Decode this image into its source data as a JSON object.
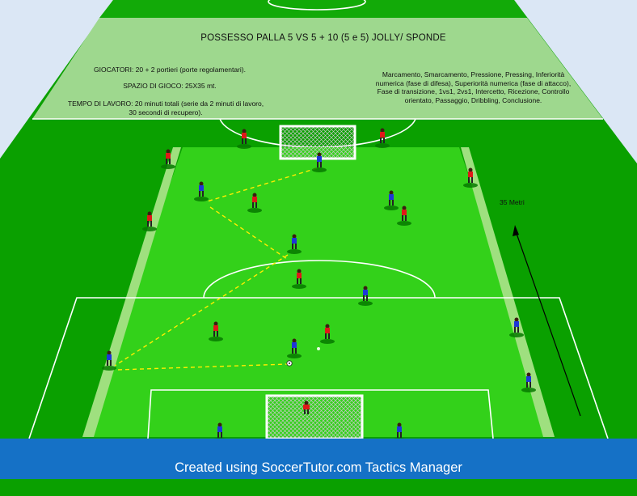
{
  "title": "POSSESSO  PALLA  5 VS 5  + 10  (5 e 5)  JOLLY/ SPONDE",
  "info": {
    "players": "GIOCATORI: 20 + 2 portieri (porte regolamentari).",
    "space": "SPAZIO DI GIOCO: 25X35 mt.",
    "time": "TEMPO DI LAVORO: 20 minuti totali (serie da 2 minuti di lavoro, 30 secondi di recupero).",
    "themes": "Marcamento, Smarcamento, Pressione, Pressing, Inferiorità numerica (fase di difesa), Superiorità numerica (fase di attacco), Fase di transizione, 1vs1, 2vs1, Intercetto, Ricezione, Controllo orientato, Passaggio, Dribbling, Conclusione."
  },
  "distance_label": "35 Metri",
  "footer": "Created using SoccerTutor.com Tactics Manager",
  "colors": {
    "pitch_dark": "#0aa000",
    "pitch_bright": "#33d11a",
    "info_panel": "#9ed88e",
    "sky": "#dbe7f5",
    "footer": "#1571c6",
    "team_blue": "#1e36d8",
    "team_red": "#e01818",
    "pass_line": "#ffee00"
  },
  "players": {
    "blue": 12,
    "red": 12,
    "goalkeepers": 2
  }
}
